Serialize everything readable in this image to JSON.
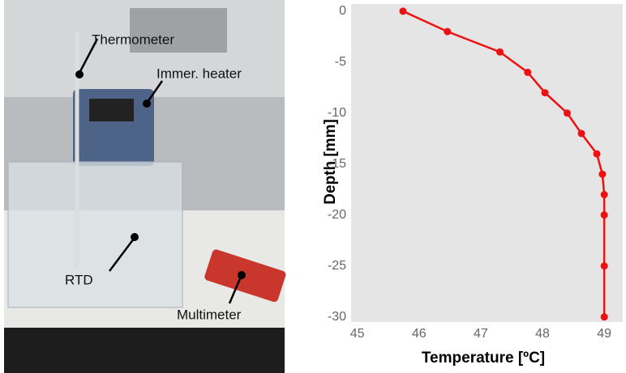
{
  "photo": {
    "labels": [
      "Thermometer",
      "Immer. heater",
      "RTD",
      "Multimeter"
    ]
  },
  "chart_data": {
    "type": "line",
    "xlabel": "Temperature [ºC]",
    "ylabel": "Depth [mm]",
    "x": [
      45.74,
      46.46,
      47.31,
      47.76,
      48.04,
      48.4,
      48.63,
      48.88,
      48.97,
      49.0,
      49.0,
      49.0,
      49.0
    ],
    "series": [
      {
        "color": "#ee1111",
        "values": [
          0,
          -2,
          -4,
          -6,
          -8,
          -10,
          -12,
          -14,
          -16,
          -18,
          -20,
          -25,
          -30
        ]
      }
    ],
    "xlim": [
      44.9,
      49.3
    ],
    "xticks": [
      45,
      46,
      47,
      48,
      49
    ],
    "ylim": [
      -30.5,
      0.7
    ],
    "yticks": [
      0,
      -5,
      -10,
      -15,
      -20,
      -25,
      -30
    ],
    "background": "#e5e5e5",
    "grid": false
  }
}
